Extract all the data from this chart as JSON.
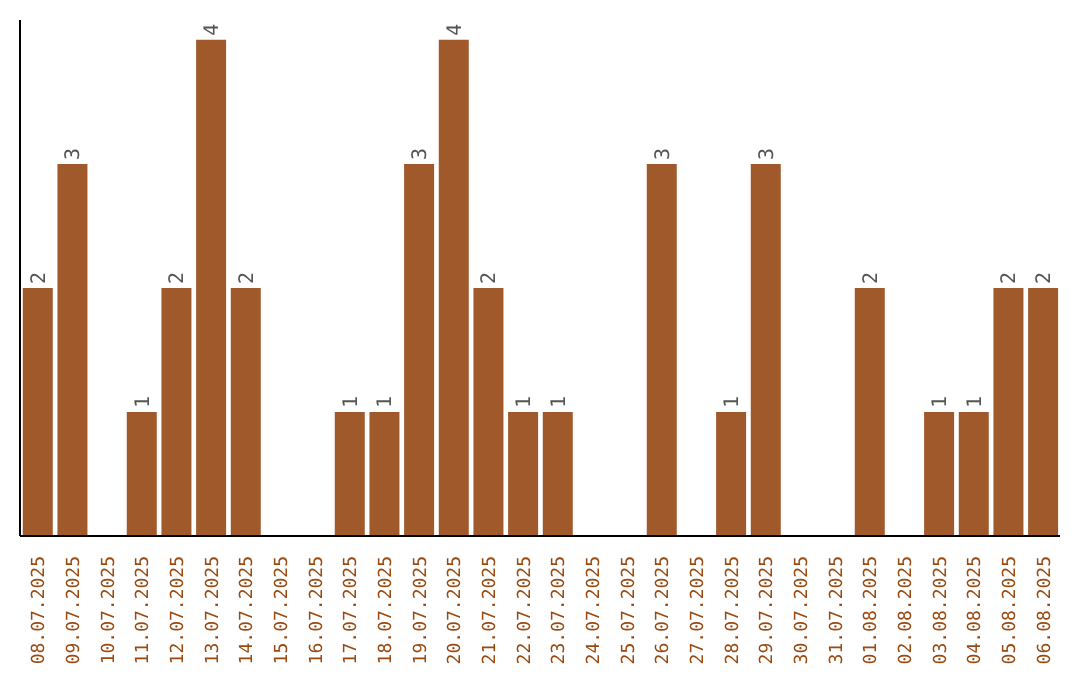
{
  "chart_data": {
    "type": "bar",
    "categories": [
      "08.07.2025",
      "09.07.2025",
      "10.07.2025",
      "11.07.2025",
      "12.07.2025",
      "13.07.2025",
      "14.07.2025",
      "15.07.2025",
      "16.07.2025",
      "17.07.2025",
      "18.07.2025",
      "19.07.2025",
      "20.07.2025",
      "21.07.2025",
      "22.07.2025",
      "23.07.2025",
      "24.07.2025",
      "25.07.2025",
      "26.07.2025",
      "27.07.2025",
      "28.07.2025",
      "29.07.2025",
      "30.07.2025",
      "31.07.2025",
      "01.08.2025",
      "02.08.2025",
      "03.08.2025",
      "04.08.2025",
      "05.08.2025",
      "06.08.2025"
    ],
    "values": [
      2,
      3,
      0,
      1,
      2,
      4,
      2,
      0,
      0,
      1,
      1,
      3,
      4,
      2,
      1,
      1,
      0,
      0,
      3,
      0,
      1,
      3,
      0,
      0,
      2,
      0,
      1,
      1,
      2,
      2
    ],
    "value_labels": [
      "2",
      "3",
      null,
      "1",
      "2",
      "4",
      "2",
      null,
      null,
      "1",
      "1",
      "3",
      "4",
      "2",
      "1",
      "1",
      null,
      null,
      "3",
      null,
      "1",
      "3",
      null,
      null,
      "2",
      null,
      "1",
      "1",
      "2",
      "2"
    ],
    "color": "#a0592a",
    "grid": false,
    "legend": false
  }
}
